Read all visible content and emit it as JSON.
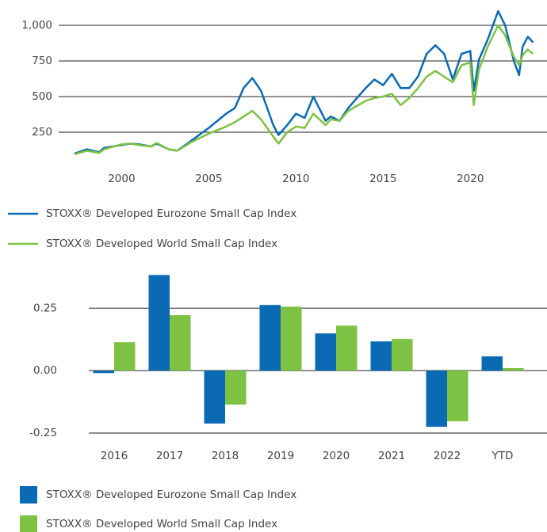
{
  "chart_data": [
    {
      "type": "line",
      "x": [
        1997.3,
        1998,
        1998.7,
        1999,
        2000,
        2000.5,
        2001,
        2001.7,
        2002,
        2002.7,
        2003.2,
        2004,
        2005,
        2005.5,
        2006,
        2006.5,
        2007,
        2007.5,
        2008,
        2008.7,
        2009,
        2009.5,
        2010,
        2010.5,
        2011,
        2011.7,
        2012,
        2012.5,
        2013,
        2014,
        2014.5,
        2015,
        2015.5,
        2016,
        2016.5,
        2017,
        2017.5,
        2018,
        2018.5,
        2019,
        2019.5,
        2020,
        2020.2,
        2020.5,
        2021,
        2021.6,
        2022,
        2022.5,
        2022.8,
        2023,
        2023.3,
        2023.6
      ],
      "series": [
        {
          "name": "STOXX® Developed Eurozone Small Cap Index",
          "color": "#0a6ab4",
          "values": [
            100,
            130,
            110,
            140,
            160,
            170,
            165,
            150,
            170,
            130,
            120,
            190,
            280,
            330,
            380,
            420,
            560,
            630,
            540,
            300,
            230,
            300,
            380,
            350,
            500,
            330,
            360,
            330,
            420,
            560,
            620,
            580,
            660,
            560,
            560,
            640,
            800,
            860,
            800,
            620,
            800,
            820,
            540,
            760,
            900,
            1100,
            1000,
            750,
            650,
            850,
            920,
            880
          ]
        },
        {
          "name": "STOXX® Developed World Small Cap Index",
          "color": "#7dc242",
          "values": [
            95,
            120,
            105,
            130,
            165,
            170,
            160,
            150,
            175,
            130,
            120,
            180,
            240,
            265,
            290,
            320,
            360,
            400,
            340,
            220,
            170,
            250,
            290,
            280,
            380,
            300,
            340,
            330,
            400,
            470,
            490,
            500,
            520,
            440,
            490,
            560,
            640,
            680,
            640,
            600,
            720,
            740,
            440,
            690,
            850,
            1000,
            930,
            780,
            720,
            790,
            830,
            800
          ]
        }
      ],
      "xlim": [
        1995.3,
        2024.4
      ],
      "xticks": [
        2000,
        2005,
        2010,
        2015,
        2020
      ],
      "ylim": [
        50,
        1100
      ],
      "yticks": [
        250,
        500,
        750,
        {
          "value": 1000,
          "label": "1,000"
        }
      ],
      "grid": true
    },
    {
      "type": "bar",
      "categories": [
        "2016",
        "2017",
        "2018",
        "2019",
        "2020",
        "2021",
        "2022",
        "YTD"
      ],
      "series": [
        {
          "name": "STOXX® Developed Eurozone Small Cap Index",
          "color": "#0a6ab4",
          "values": [
            -0.01,
            0.383,
            -0.212,
            0.263,
            0.149,
            0.117,
            -0.225,
            0.057
          ]
        },
        {
          "name": "STOXX® Developed World Small Cap Index",
          "color": "#7dc242",
          "values": [
            0.114,
            0.222,
            -0.136,
            0.256,
            0.18,
            0.127,
            -0.203,
            0.01
          ]
        }
      ],
      "ylim": [
        -0.25,
        0.4
      ],
      "yticks": [
        {
          "value": -0.25,
          "label": "-0.25"
        },
        {
          "value": 0,
          "label": "0.00"
        },
        {
          "value": 0.25,
          "label": "0.25"
        }
      ],
      "grid": true
    }
  ]
}
